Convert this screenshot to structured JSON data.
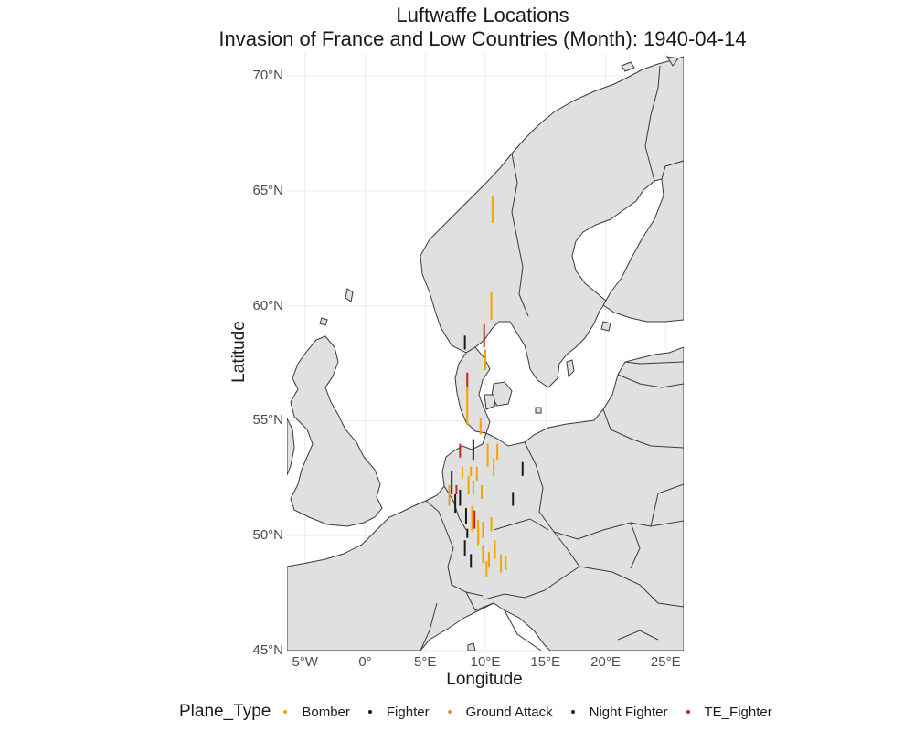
{
  "title": {
    "line1": "Luftwaffe Locations",
    "line2": "Invasion of France and Low Countries  (Month): 1940-04-14"
  },
  "axes": {
    "x_title": "Longitude",
    "y_title": "Latitude",
    "x_ticks": [
      "5°W",
      "0°",
      "5°E",
      "10°E",
      "15°E",
      "20°E",
      "25°E"
    ],
    "y_ticks": [
      "45°N",
      "50°N",
      "55°N",
      "60°N",
      "65°N",
      "70°N"
    ]
  },
  "legend": {
    "title": "Plane_Type",
    "items": [
      {
        "label": "Bomber",
        "color": "#f5a300"
      },
      {
        "label": "Fighter",
        "color": "#1a1a1a"
      },
      {
        "label": "Ground Attack",
        "color": "#d4a23a"
      },
      {
        "label": "Night Fighter",
        "color": "#1e2140"
      },
      {
        "label": "TE_Fighter",
        "color": "#c0281c"
      }
    ]
  },
  "colors": {
    "land": "#e0e0e0",
    "border": "#3a3a3a",
    "grid": "#ebebeb",
    "sea": "#ffffff"
  },
  "map_data": {
    "x_range": [
      -6.5,
      26.5
    ],
    "y_range": [
      45.0,
      71.0
    ],
    "segments": [
      {
        "lon": 10.6,
        "lat0": 63.6,
        "lat1": 64.8,
        "type": "Bomber"
      },
      {
        "lon": 10.5,
        "lat0": 59.4,
        "lat1": 60.6,
        "type": "Bomber"
      },
      {
        "lon": 8.3,
        "lat0": 58.1,
        "lat1": 58.7,
        "type": "Fighter"
      },
      {
        "lon": 9.9,
        "lat0": 58.2,
        "lat1": 59.2,
        "type": "TE_Fighter"
      },
      {
        "lon": 10.0,
        "lat0": 57.2,
        "lat1": 58.1,
        "type": "Bomber"
      },
      {
        "lon": 8.5,
        "lat0": 56.3,
        "lat1": 57.1,
        "type": "TE_Fighter"
      },
      {
        "lon": 8.5,
        "lat0": 54.8,
        "lat1": 56.5,
        "type": "Bomber"
      },
      {
        "lon": 9.6,
        "lat0": 54.4,
        "lat1": 55.1,
        "type": "Bomber"
      },
      {
        "lon": 7.9,
        "lat0": 53.4,
        "lat1": 54.0,
        "type": "TE_Fighter"
      },
      {
        "lon": 9.0,
        "lat0": 53.3,
        "lat1": 54.2,
        "type": "Fighter"
      },
      {
        "lon": 10.2,
        "lat0": 53.0,
        "lat1": 54.0,
        "type": "Bomber"
      },
      {
        "lon": 11.0,
        "lat0": 53.3,
        "lat1": 54.0,
        "type": "Bomber"
      },
      {
        "lon": 10.7,
        "lat0": 52.6,
        "lat1": 53.4,
        "type": "Bomber"
      },
      {
        "lon": 13.1,
        "lat0": 52.6,
        "lat1": 53.2,
        "type": "Fighter"
      },
      {
        "lon": 7.2,
        "lat0": 51.8,
        "lat1": 52.8,
        "type": "Fighter"
      },
      {
        "lon": 8.1,
        "lat0": 52.5,
        "lat1": 53.0,
        "type": "Bomber"
      },
      {
        "lon": 8.8,
        "lat0": 52.6,
        "lat1": 53.0,
        "type": "Bomber"
      },
      {
        "lon": 9.3,
        "lat0": 52.4,
        "lat1": 53.0,
        "type": "Bomber"
      },
      {
        "lon": 7.0,
        "lat0": 51.3,
        "lat1": 52.2,
        "type": "Ground Attack"
      },
      {
        "lon": 7.6,
        "lat0": 51.8,
        "lat1": 52.2,
        "type": "TE_Fighter"
      },
      {
        "lon": 7.5,
        "lat0": 51.0,
        "lat1": 51.8,
        "type": "Fighter"
      },
      {
        "lon": 7.9,
        "lat0": 51.3,
        "lat1": 52.0,
        "type": "Fighter"
      },
      {
        "lon": 8.6,
        "lat0": 51.8,
        "lat1": 52.6,
        "type": "Bomber"
      },
      {
        "lon": 9.0,
        "lat0": 51.8,
        "lat1": 52.4,
        "type": "Bomber"
      },
      {
        "lon": 9.7,
        "lat0": 51.6,
        "lat1": 52.2,
        "type": "Bomber"
      },
      {
        "lon": 12.3,
        "lat0": 51.3,
        "lat1": 51.9,
        "type": "Fighter"
      },
      {
        "lon": 8.4,
        "lat0": 50.5,
        "lat1": 51.2,
        "type": "Fighter"
      },
      {
        "lon": 8.9,
        "lat0": 50.2,
        "lat1": 51.3,
        "type": "Bomber"
      },
      {
        "lon": 9.1,
        "lat0": 50.3,
        "lat1": 51.1,
        "type": "TE_Fighter"
      },
      {
        "lon": 9.4,
        "lat0": 49.6,
        "lat1": 50.7,
        "type": "Bomber"
      },
      {
        "lon": 8.5,
        "lat0": 49.9,
        "lat1": 50.3,
        "type": "Fighter"
      },
      {
        "lon": 9.8,
        "lat0": 49.9,
        "lat1": 50.6,
        "type": "Bomber"
      },
      {
        "lon": 10.5,
        "lat0": 50.2,
        "lat1": 50.8,
        "type": "Bomber"
      },
      {
        "lon": 8.3,
        "lat0": 49.1,
        "lat1": 49.8,
        "type": "Fighter"
      },
      {
        "lon": 8.8,
        "lat0": 48.6,
        "lat1": 49.2,
        "type": "Fighter"
      },
      {
        "lon": 9.8,
        "lat0": 48.8,
        "lat1": 49.6,
        "type": "Bomber"
      },
      {
        "lon": 10.3,
        "lat0": 48.6,
        "lat1": 49.3,
        "type": "Bomber"
      },
      {
        "lon": 10.8,
        "lat0": 49.0,
        "lat1": 49.8,
        "type": "Bomber"
      },
      {
        "lon": 11.3,
        "lat0": 48.4,
        "lat1": 49.2,
        "type": "Bomber"
      },
      {
        "lon": 11.7,
        "lat0": 48.5,
        "lat1": 49.1,
        "type": "Bomber"
      },
      {
        "lon": 10.1,
        "lat0": 48.2,
        "lat1": 48.9,
        "type": "Bomber"
      }
    ]
  }
}
